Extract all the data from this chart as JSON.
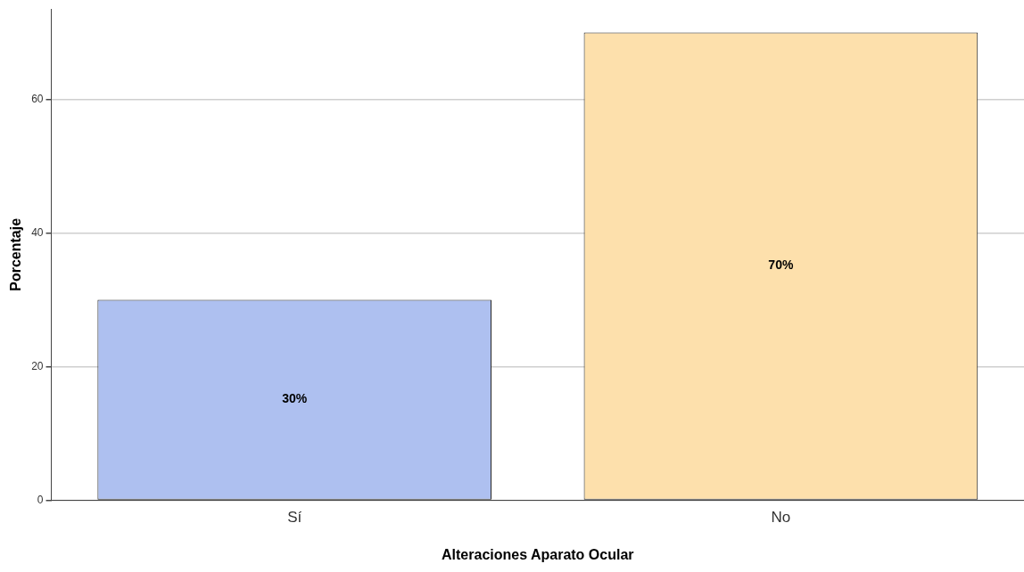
{
  "chart_data": {
    "type": "bar",
    "xlabel": "Alteraciones Aparato Ocular",
    "ylabel": "Porcentaje",
    "categories": [
      "Sí",
      "No"
    ],
    "values": [
      30,
      70
    ],
    "colors": [
      "#aec0f0",
      "#fde0ac"
    ],
    "value_labels": [
      "30%",
      "70%"
    ],
    "ylim": [
      0,
      73.5
    ],
    "yticks": [
      0,
      20,
      40,
      60
    ],
    "grid": "y",
    "legend": false
  }
}
